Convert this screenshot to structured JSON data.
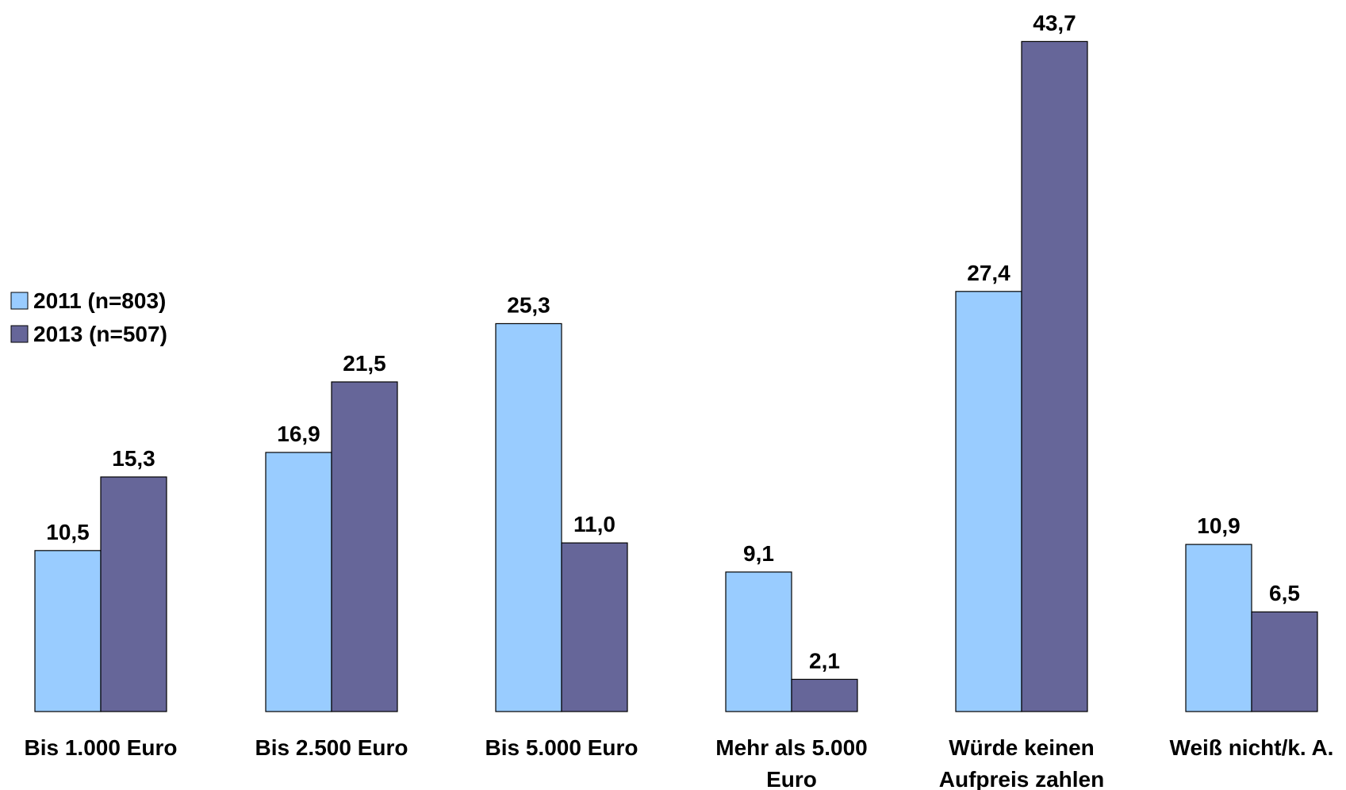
{
  "chart_data": {
    "type": "bar",
    "categories": [
      [
        "Bis 1.000 Euro"
      ],
      [
        "Bis 2.500 Euro"
      ],
      [
        "Bis 5.000 Euro"
      ],
      [
        "Mehr als 5.000",
        "Euro"
      ],
      [
        "Würde keinen",
        "Aufpreis zahlen"
      ],
      [
        "Weiß nicht/k. A."
      ]
    ],
    "series": [
      {
        "name": "2011 (n=803)",
        "color": "#99ccff",
        "values": [
          10.5,
          16.9,
          25.3,
          9.1,
          27.4,
          10.9
        ],
        "labels": [
          "10,5",
          "16,9",
          "25,3",
          "9,1",
          "27,4",
          "10,9"
        ]
      },
      {
        "name": "2013 (n=507)",
        "color": "#666699",
        "values": [
          15.3,
          21.5,
          11.0,
          2.1,
          43.7,
          6.5
        ],
        "labels": [
          "15,3",
          "21,5",
          "11,0",
          "2,1",
          "43,7",
          "6,5"
        ]
      }
    ],
    "legend_position": "left",
    "grid": false
  }
}
